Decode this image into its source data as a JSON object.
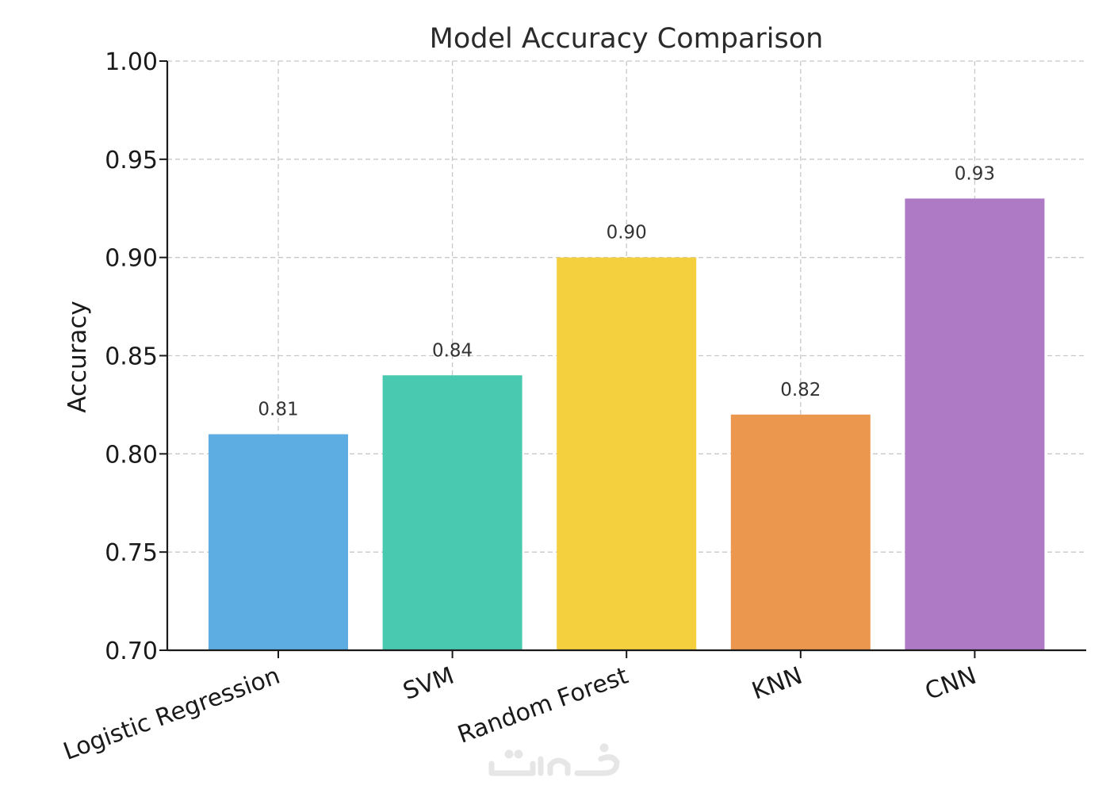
{
  "chart_data": {
    "type": "bar",
    "title": "Model Accuracy Comparison",
    "xlabel": "",
    "ylabel": "Accuracy",
    "categories": [
      "Logistic Regression",
      "SVM",
      "Random Forest",
      "KNN",
      "CNN"
    ],
    "values": [
      0.81,
      0.84,
      0.9,
      0.82,
      0.93
    ],
    "value_labels": [
      "0.81",
      "0.84",
      "0.90",
      "0.82",
      "0.93"
    ],
    "colors": [
      "#5DADE2",
      "#48C9B0",
      "#F4D03F",
      "#EB984E",
      "#AF7AC5"
    ],
    "ylim": [
      0.7,
      1.0
    ],
    "yticks": [
      "0.70",
      "0.75",
      "0.80",
      "0.85",
      "0.90",
      "0.95",
      "1.00"
    ],
    "grid": true,
    "x_tick_rotation_deg": 20
  },
  "watermark": {
    "brand": "khamsat-logo",
    "color": "#e6e6e6"
  }
}
